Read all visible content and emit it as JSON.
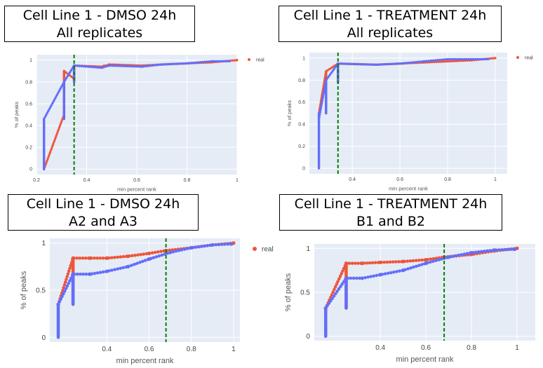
{
  "colors": {
    "series_a": "#636efa",
    "series_b": "#ef553b",
    "threshold": "#008000",
    "plot_bg": "#e5ecf6",
    "grid": "#ffffff"
  },
  "chart_data": [
    {
      "type": "scatter",
      "title_lines": [
        "Cell Line 1 - DMSO 24h",
        "All replicates"
      ],
      "xlabel": "min percent rank",
      "ylabel": "% of peaks",
      "xlim": [
        0.2,
        1.0
      ],
      "ylim": [
        -0.05,
        1.05
      ],
      "xticks": [
        0.2,
        0.4,
        0.6,
        0.8,
        1
      ],
      "xtick_labels": [
        "0.2",
        "0.4",
        "0.6",
        "0.8",
        "1"
      ],
      "yticks": [
        0,
        0.2,
        0.4,
        0.6,
        0.8,
        1
      ],
      "ytick_labels": [
        "0",
        "0.2",
        "0.4",
        "0.6",
        "0.8",
        "1"
      ],
      "legend": {
        "label": "real",
        "position": "top-right"
      },
      "threshold_x": 0.35,
      "series": [
        {
          "color_key": "series_b",
          "x": [
            0.23,
            0.31,
            0.31,
            0.35,
            0.35,
            0.46,
            0.47,
            0.48,
            0.49,
            0.62,
            0.7,
            0.8,
            0.9,
            1.0
          ],
          "y": [
            0.0,
            0.5,
            0.9,
            0.83,
            0.95,
            0.94,
            0.95,
            0.95,
            0.96,
            0.95,
            0.96,
            0.97,
            0.98,
            1.0
          ],
          "vsegments": [
            [
              0.31,
              0.5,
              0.9
            ],
            [
              0.35,
              0.8,
              0.95
            ]
          ]
        },
        {
          "color_key": "series_a",
          "x": [
            0.23,
            0.31,
            0.35,
            0.46,
            0.49,
            0.62,
            0.7,
            0.8,
            0.9,
            0.97
          ],
          "y": [
            0.46,
            0.8,
            0.95,
            0.93,
            0.95,
            0.94,
            0.96,
            0.97,
            0.99,
            0.99
          ],
          "vsegments": [
            [
              0.23,
              0.0,
              0.46
            ],
            [
              0.31,
              0.46,
              0.8
            ],
            [
              0.35,
              0.8,
              0.95
            ]
          ]
        }
      ]
    },
    {
      "type": "scatter",
      "title_lines": [
        "Cell Line 1 - TREATMENT 24h",
        "All replicates"
      ],
      "xlabel": "min percent rank",
      "ylabel": "% of peaks",
      "xlim": [
        0.22,
        1.05
      ],
      "ylim": [
        -0.05,
        1.05
      ],
      "xticks": [
        0.4,
        0.6,
        0.8,
        1
      ],
      "xtick_labels": [
        "0.4",
        "0.6",
        "0.8",
        "1"
      ],
      "yticks": [
        0,
        0.2,
        0.4,
        0.6,
        0.8,
        1
      ],
      "ytick_labels": [
        "0",
        "0.2",
        "0.4",
        "0.6",
        "0.8",
        "1"
      ],
      "legend": {
        "label": "real",
        "position": "top-right"
      },
      "threshold_x": 0.34,
      "series": [
        {
          "color_key": "series_b",
          "x": [
            0.26,
            0.29,
            0.34,
            0.5,
            0.6,
            0.7,
            0.8,
            0.9,
            1.0
          ],
          "y": [
            0.5,
            0.88,
            0.95,
            0.94,
            0.95,
            0.96,
            0.97,
            0.98,
            1.0
          ],
          "vsegments": [
            [
              0.29,
              0.5,
              0.88
            ],
            [
              0.34,
              0.8,
              0.95
            ]
          ]
        },
        {
          "color_key": "series_a",
          "x": [
            0.26,
            0.29,
            0.34,
            0.5,
            0.6,
            0.7,
            0.8,
            0.9,
            0.97
          ],
          "y": [
            0.45,
            0.8,
            0.95,
            0.94,
            0.95,
            0.97,
            0.99,
            0.99,
            0.99
          ],
          "vsegments": [
            [
              0.26,
              0.0,
              0.5
            ],
            [
              0.29,
              0.5,
              0.8
            ],
            [
              0.34,
              0.78,
              0.95
            ]
          ]
        }
      ]
    },
    {
      "type": "scatter",
      "title_lines": [
        "Cell Line 1 - DMSO 24h",
        "A2 and A3"
      ],
      "xlabel": "min percent rank",
      "ylabel": "% of peaks",
      "xlim": [
        0.13,
        1.03
      ],
      "ylim": [
        -0.05,
        1.05
      ],
      "xticks": [
        0.4,
        0.6,
        0.8,
        1
      ],
      "xtick_labels": [
        "0.4",
        "0.6",
        "0.8",
        "1"
      ],
      "yticks": [
        0,
        0.5,
        1
      ],
      "ytick_labels": [
        "0",
        "0.5",
        "1"
      ],
      "legend": {
        "label": "real",
        "position": "top-right"
      },
      "threshold_x": 0.68,
      "series": [
        {
          "color_key": "series_b",
          "x": [
            0.17,
            0.24,
            0.32,
            0.4,
            0.5,
            0.6,
            0.68,
            0.8,
            0.9,
            1.0
          ],
          "y": [
            0.35,
            0.84,
            0.84,
            0.84,
            0.86,
            0.89,
            0.92,
            0.95,
            0.98,
            1.0
          ],
          "vsegments": [
            [
              0.24,
              0.35,
              0.84
            ]
          ]
        },
        {
          "color_key": "series_a",
          "x": [
            0.17,
            0.24,
            0.32,
            0.4,
            0.5,
            0.6,
            0.7,
            0.8,
            0.9,
            0.99
          ],
          "y": [
            0.35,
            0.67,
            0.67,
            0.7,
            0.75,
            0.83,
            0.9,
            0.95,
            0.98,
            0.99
          ],
          "vsegments": [
            [
              0.17,
              0.0,
              0.35
            ],
            [
              0.24,
              0.35,
              0.67
            ]
          ]
        }
      ]
    },
    {
      "type": "scatter",
      "title_lines": [
        "Cell Line 1 - TREATMENT 24h",
        "B1 and B2"
      ],
      "xlabel": "min percent rank",
      "ylabel": "% of peaks",
      "xlim": [
        0.11,
        1.08
      ],
      "ylim": [
        -0.05,
        1.05
      ],
      "xticks": [
        0.4,
        0.6,
        0.8,
        1
      ],
      "xtick_labels": [
        "0.4",
        "0.6",
        "0.8",
        "1"
      ],
      "yticks": [
        0,
        0.5,
        1
      ],
      "ytick_labels": [
        "0",
        "0.5",
        "1"
      ],
      "legend": {
        "label": "",
        "position": "top-right"
      },
      "threshold_x": 0.68,
      "series": [
        {
          "color_key": "series_b",
          "x": [
            0.16,
            0.25,
            0.32,
            0.4,
            0.5,
            0.6,
            0.68,
            0.8,
            0.9,
            1.0
          ],
          "y": [
            0.32,
            0.83,
            0.83,
            0.84,
            0.85,
            0.87,
            0.9,
            0.93,
            0.97,
            1.0
          ],
          "vsegments": [
            [
              0.25,
              0.32,
              0.83
            ]
          ]
        },
        {
          "color_key": "series_a",
          "x": [
            0.16,
            0.25,
            0.32,
            0.4,
            0.5,
            0.6,
            0.7,
            0.8,
            0.9,
            0.99
          ],
          "y": [
            0.32,
            0.66,
            0.66,
            0.7,
            0.75,
            0.83,
            0.9,
            0.95,
            0.98,
            0.99
          ],
          "vsegments": [
            [
              0.16,
              0.0,
              0.32
            ],
            [
              0.25,
              0.32,
              0.66
            ]
          ]
        }
      ]
    }
  ]
}
